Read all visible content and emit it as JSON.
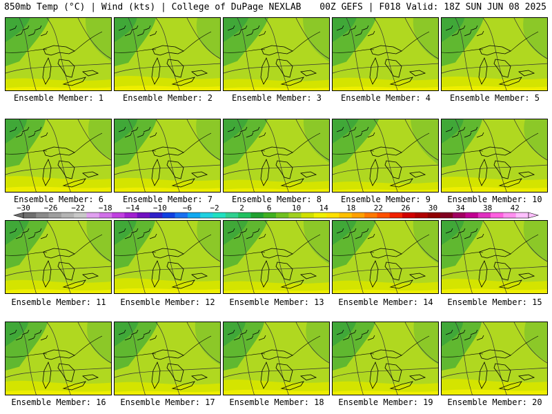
{
  "header": {
    "left": "850mb Temp (°C) | Wind (kts) | College of DuPage NEXLAB",
    "right": "00Z GEFS | F018 Valid: 18Z SUN JUN 08 2025"
  },
  "colorbar": {
    "labels": [
      "-30",
      "-26",
      "-22",
      "-18",
      "-14",
      "-10",
      "-6",
      "-2",
      "2",
      "6",
      "10",
      "14",
      "18",
      "22",
      "26",
      "30",
      "34",
      "38",
      "42"
    ],
    "colors": [
      "#6e6e6e",
      "#8a8a8a",
      "#9f9f9f",
      "#b4b4b4",
      "#c8c8c8",
      "#e0a0f0",
      "#d070e8",
      "#c040e0",
      "#a020d0",
      "#7010c0",
      "#3020c8",
      "#1040e0",
      "#1870f0",
      "#10a8f0",
      "#20d0e0",
      "#20e0c0",
      "#30d090",
      "#20c060",
      "#20a030",
      "#40b020",
      "#70c020",
      "#a0d020",
      "#d0e000",
      "#f0f000",
      "#ffe000",
      "#ffc000",
      "#ffa000",
      "#ff7800",
      "#ff5000",
      "#f02000",
      "#d00000",
      "#b00000",
      "#900000",
      "#800020",
      "#a00060",
      "#c00090",
      "#e030c0",
      "#ff60e0",
      "#ff90f0",
      "#ffc0ff"
    ]
  },
  "map": {
    "fill_colors": [
      "#40a838",
      "#60b830",
      "#8cc828",
      "#b0d820",
      "#d4e400",
      "#eeee00"
    ],
    "members": [
      {
        "label": "Ensemble Member: 1",
        "warm": 0.3
      },
      {
        "label": "Ensemble Member: 2",
        "warm": 0.5
      },
      {
        "label": "Ensemble Member: 3",
        "warm": 0.25
      },
      {
        "label": "Ensemble Member: 4",
        "warm": 0.35
      },
      {
        "label": "Ensemble Member: 5",
        "warm": 0.45
      },
      {
        "label": "Ensemble Member: 6",
        "warm": 0.6
      },
      {
        "label": "Ensemble Member: 7",
        "warm": 0.45
      },
      {
        "label": "Ensemble Member: 8",
        "warm": 0.3
      },
      {
        "label": "Ensemble Member: 9",
        "warm": 0.15
      },
      {
        "label": "Ensemble Member: 10",
        "warm": 0.55
      },
      {
        "label": "Ensemble Member: 11",
        "warm": 0.4
      },
      {
        "label": "Ensemble Member: 12",
        "warm": 0.55
      },
      {
        "label": "Ensemble Member: 13",
        "warm": 0.3
      },
      {
        "label": "Ensemble Member: 14",
        "warm": 0.35
      },
      {
        "label": "Ensemble Member: 15",
        "warm": 0.5
      },
      {
        "label": "Ensemble Member: 16",
        "warm": 0.45
      },
      {
        "label": "Ensemble Member: 17",
        "warm": 0.35
      },
      {
        "label": "Ensemble Member: 18",
        "warm": 0.55
      },
      {
        "label": "Ensemble Member: 19",
        "warm": 0.4
      },
      {
        "label": "Ensemble Member: 20",
        "warm": 0.6
      }
    ]
  }
}
